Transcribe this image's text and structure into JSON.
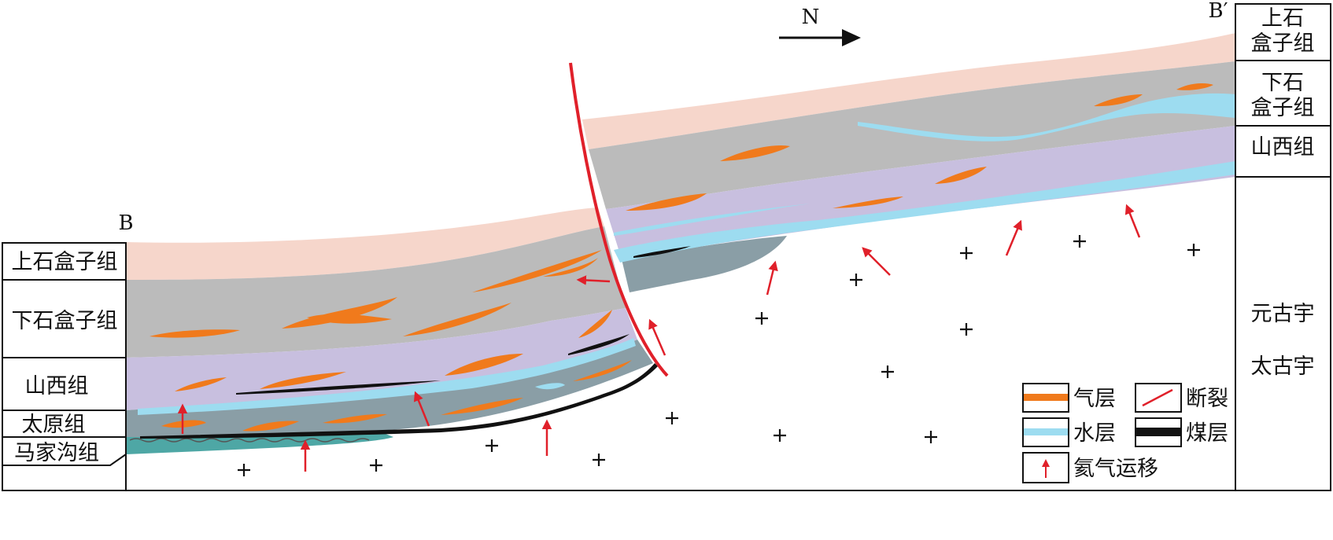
{
  "profile": {
    "endpoint_left": "B",
    "endpoint_right": "B′",
    "north_label": "N"
  },
  "left_column": {
    "units": [
      "上石盒子组",
      "下石盒子组",
      "山西组",
      "太原组",
      "马家沟组"
    ]
  },
  "right_column": {
    "units": [
      {
        "line1": "上石",
        "line2": "盒子组"
      },
      {
        "line1": "下石",
        "line2": "盒子组"
      },
      {
        "line1": "山西组",
        "line2": ""
      }
    ],
    "basement_line1": "元古宇",
    "basement_line2": "太古宇"
  },
  "legend": {
    "gas_layer": "气层",
    "fault": "断裂",
    "water_layer": "水层",
    "coal_layer": "煤层",
    "helium_migration": "氦气运移"
  },
  "colors": {
    "upper_shihezi": "#f6d6cb",
    "lower_shihezi": "#bbbbbb",
    "shanxi": "#c8bfdf",
    "taiyuan": "#8a9ea6",
    "majiagou": "#4ea7a5",
    "water": "#9ddcf0",
    "gas": "#f07a1c",
    "coal": "#111111",
    "fault": "#e0202a",
    "migration_arrow": "#e0202a"
  }
}
